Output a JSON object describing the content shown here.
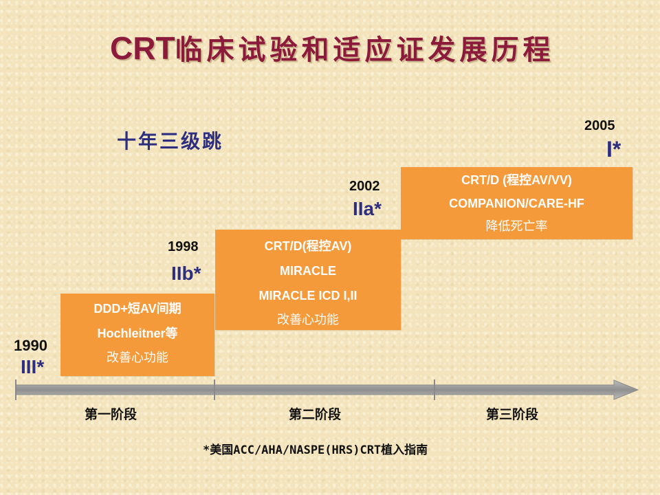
{
  "title": {
    "latin": "CRT",
    "cn": "临床试验和适应证发展历程"
  },
  "subtitle": "十年三级跳",
  "colors": {
    "title": "#8b1a3b",
    "class": "#2e2e80",
    "box": "#f59a3a",
    "axis": "#9a9a9a"
  },
  "milestones": [
    {
      "year": "1990",
      "class": "III*"
    },
    {
      "year": "1998",
      "class": "IIb*"
    },
    {
      "year": "2002",
      "class": "IIa*"
    },
    {
      "year": "2005",
      "class": "I*"
    }
  ],
  "boxes": [
    {
      "lines": [
        "DDD+短AV间期",
        "Hochleitner等",
        "改善心功能"
      ]
    },
    {
      "lines": [
        "CRT/D(程控AV)",
        "MIRACLE",
        "MIRACLE ICD I,II",
        "改善心功能"
      ]
    },
    {
      "lines": [
        "CRT/D (程控AV/VV)",
        "COMPANION/CARE-HF",
        "降低死亡率"
      ]
    }
  ],
  "stages": [
    "第一阶段",
    "第二阶段",
    "第三阶段"
  ],
  "footnote": "*美国ACC/AHA/NASPE(HRS)CRT植入指南"
}
